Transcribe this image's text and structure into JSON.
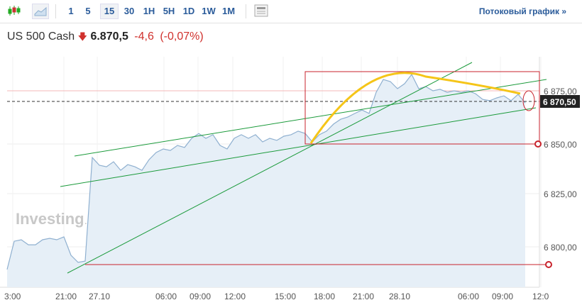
{
  "toolbar": {
    "intervals": [
      "1",
      "5",
      "15",
      "30",
      "1H",
      "5H",
      "1D",
      "1W",
      "1M"
    ],
    "selected": "15",
    "stream_link": "Потоковый график »"
  },
  "instrument": {
    "name": "US 500 Cash",
    "price": "6.870,5",
    "change": "-4,6",
    "change_pct": "(-0,07%)",
    "direction": "down"
  },
  "watermark": "Investing.com",
  "colors": {
    "line": "#8fb0d0",
    "area": "#e6eff7",
    "down": "#d0312d",
    "drawing_green": "#1a9a3a",
    "drawing_red": "#c8232c",
    "drawing_yellow": "#f5c518"
  },
  "chart_data": {
    "type": "area",
    "x_tick_labels": [
      "3:00",
      "21:00",
      "27.10",
      "06:00",
      "09:00",
      "12:00",
      "15:00",
      "18:00",
      "21:00",
      "28.10",
      "06:00",
      "09:00",
      "12:0"
    ],
    "y_tick_labels": [
      "6 875,00",
      "6 850,00",
      "6 825,00",
      "6 800,00"
    ],
    "ylim": [
      6785,
      6890
    ],
    "current_price_label": "6 870,50",
    "values": [
      6789.6,
      6803.1,
      6803.8,
      6801.4,
      6801.4,
      6803.8,
      6804.5,
      6803.8,
      6805.2,
      6796.4,
      6793.0,
      6793.6,
      6843.1,
      6839.4,
      6838.7,
      6841.1,
      6837.0,
      6839.7,
      6838.7,
      6837.0,
      6842.1,
      6845.5,
      6847.2,
      6846.5,
      6848.9,
      6847.9,
      6852.3,
      6854.6,
      6852.3,
      6854.0,
      6848.9,
      6847.2,
      6852.3,
      6854.0,
      6852.3,
      6854.0,
      6850.6,
      6852.3,
      6851.3,
      6853.3,
      6854.0,
      6855.7,
      6854.6,
      6850.6,
      6854.0,
      6855.7,
      6859.1,
      6861.4,
      6862.5,
      6864.2,
      6865.8,
      6864.2,
      6874.3,
      6880.4,
      6879.4,
      6876.0,
      6878.4,
      6882.8,
      6876.0,
      6877.0,
      6875.0,
      6875.7,
      6874.3,
      6875.0,
      6874.3,
      6875.0,
      6873.6,
      6870.9,
      6870.3,
      6871.6,
      6872.6,
      6870.3,
      6873.3,
      6869.2
    ]
  }
}
